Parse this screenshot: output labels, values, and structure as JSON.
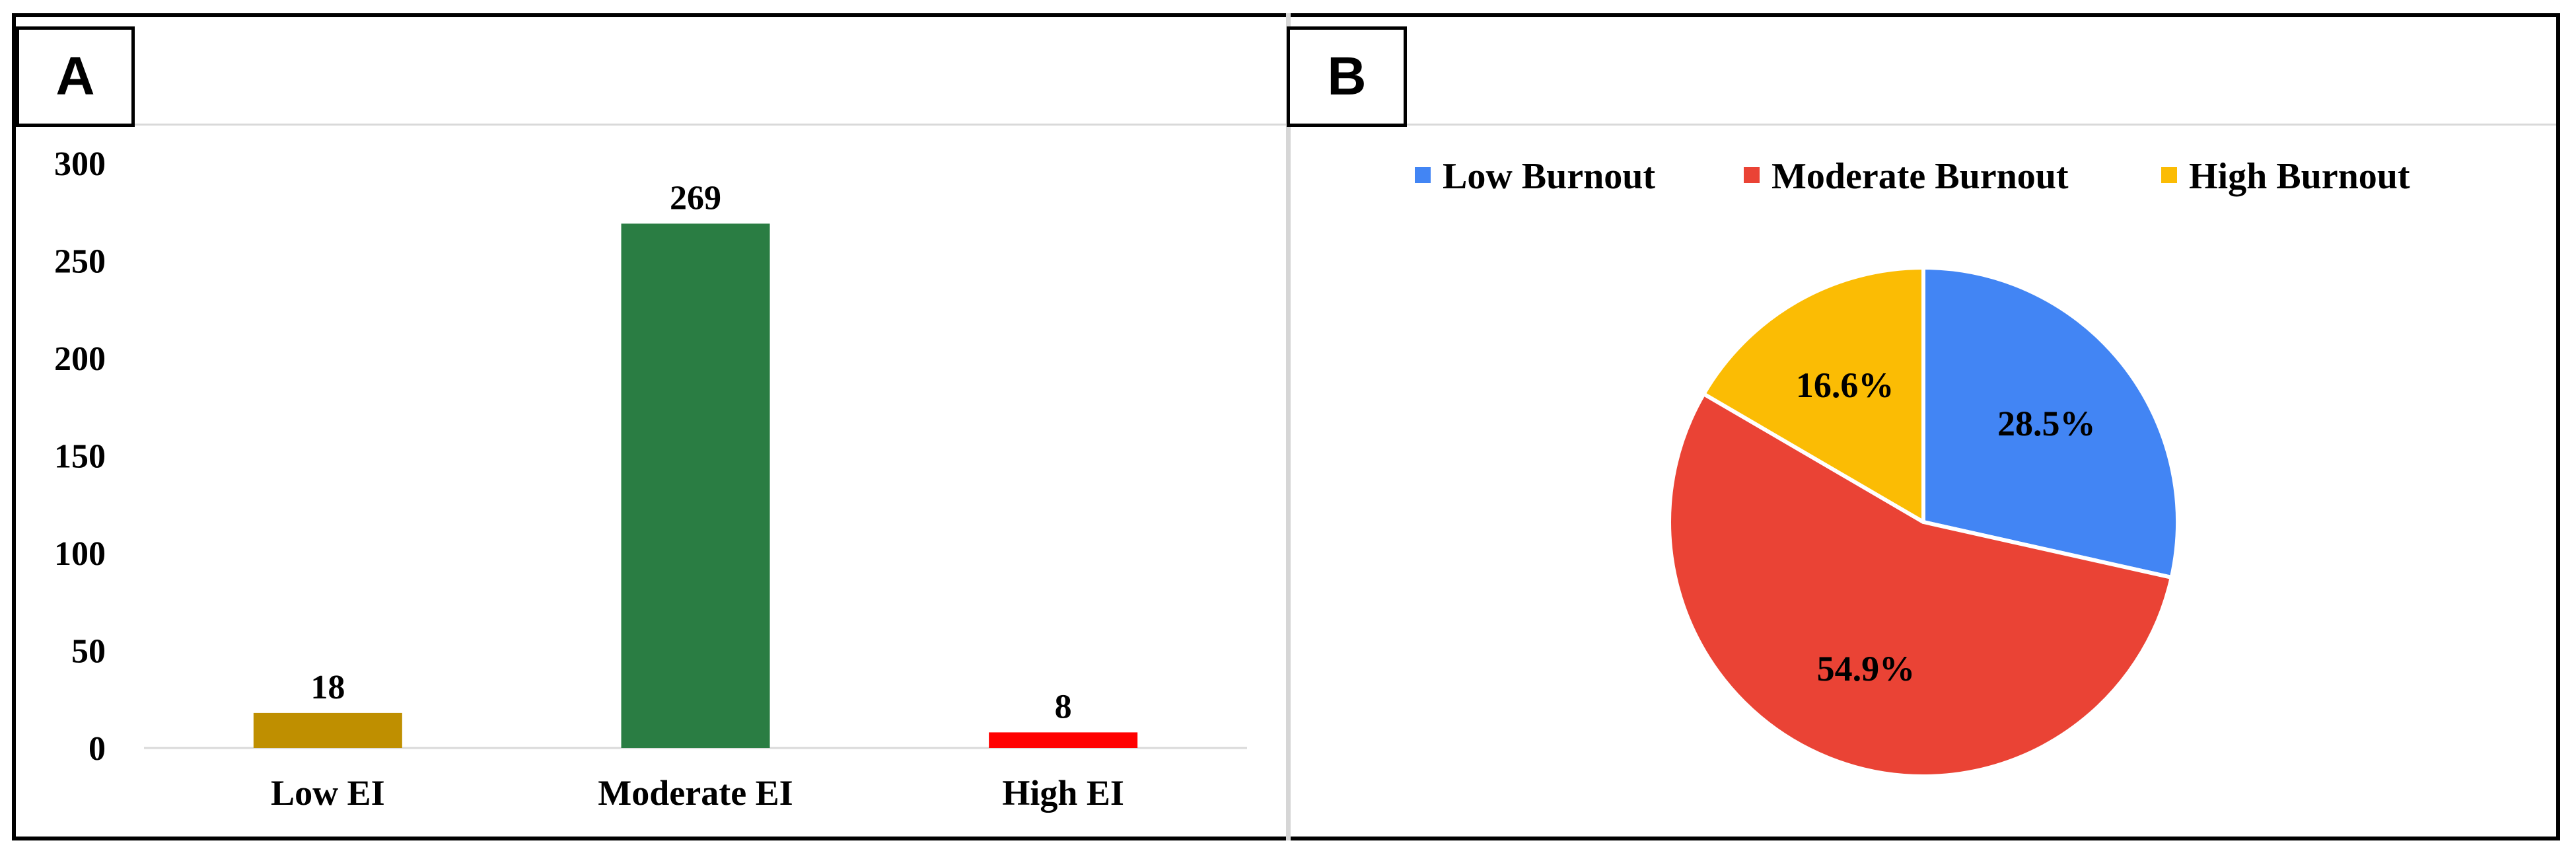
{
  "panels": {
    "a_label": "A",
    "b_label": "B"
  },
  "colors": {
    "low_ei": "#bf8f00",
    "moderate_ei": "#2a7d43",
    "high_ei": "#ff0000",
    "low_burnout": "#4285f4",
    "moderate_burnout": "#ea4335",
    "high_burnout": "#fbbc04"
  },
  "chart_data": [
    {
      "type": "bar",
      "categories": [
        "Low EI",
        "Moderate EI",
        "High EI"
      ],
      "values": [
        18,
        269,
        8
      ],
      "data_labels": [
        "18",
        "269",
        "8"
      ],
      "yticks": [
        "0",
        "50",
        "100",
        "150",
        "200",
        "250",
        "300"
      ],
      "ylim": [
        0,
        300
      ],
      "grid": false,
      "title": "",
      "xlabel": "",
      "ylabel": ""
    },
    {
      "type": "pie",
      "labels": [
        "Low Burnout",
        "Moderate Burnout",
        "High Burnout"
      ],
      "values": [
        28.5,
        54.9,
        16.6
      ],
      "data_labels": [
        "28.5%",
        "54.9%",
        "16.6%"
      ],
      "legend_position": "top",
      "title": ""
    }
  ]
}
